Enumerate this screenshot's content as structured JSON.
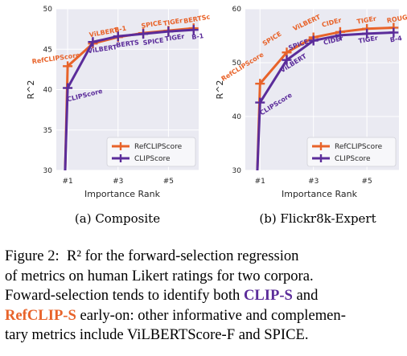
{
  "chart_data": [
    {
      "type": "line",
      "subtitle": "(a) Composite",
      "xlabel": "Importance Rank",
      "ylabel": "R^2",
      "ylim": [
        30,
        50
      ],
      "yticks": [
        30,
        35,
        40,
        45,
        50
      ],
      "xticks": [
        "#1",
        "#3",
        "#5"
      ],
      "x": [
        1,
        2,
        3,
        4,
        5,
        6
      ],
      "grid": true,
      "legend_position": "bottom-right",
      "series": [
        {
          "name": "RefCLIPScore",
          "color": "#e8632a",
          "values": [
            30.0,
            42.9,
            45.7,
            46.5,
            47.0,
            47.3,
            47.6
          ],
          "x": [
            0.9,
            1.0,
            2.0,
            3.0,
            4.0,
            5.0,
            6.0
          ],
          "labels": [
            "RefCLIPScore",
            "ViLBERT",
            "B-1",
            "SPICE",
            "TIGEr",
            "BERTSc"
          ]
        },
        {
          "name": "CLIPScore",
          "color": "#5b2c9a",
          "values": [
            30.0,
            40.2,
            45.9,
            46.6,
            46.9,
            47.2,
            47.4
          ],
          "x": [
            0.9,
            1.0,
            2.0,
            3.0,
            4.0,
            5.0,
            6.0
          ],
          "labels": [
            "CLIPScore",
            "ViLBERT",
            "BERTS",
            "SPICE",
            "TIGEr",
            "B-1"
          ]
        }
      ]
    },
    {
      "type": "line",
      "subtitle": "(b) Flickr8k-Expert",
      "xlabel": "Importance Rank",
      "ylabel": "R^2",
      "ylim": [
        30,
        60
      ],
      "yticks": [
        30,
        40,
        50,
        60
      ],
      "xticks": [
        "#1",
        "#3",
        "#5"
      ],
      "x": [
        1,
        2,
        3,
        4,
        5,
        6
      ],
      "grid": true,
      "legend_position": "bottom-right",
      "series": [
        {
          "name": "RefCLIPScore",
          "color": "#e8632a",
          "values": [
            30.0,
            46.1,
            51.9,
            54.7,
            55.7,
            56.3,
            56.5
          ],
          "x": [
            0.9,
            1.0,
            2.0,
            3.0,
            4.0,
            5.0,
            6.0
          ],
          "labels": [
            "RefCLIPScore",
            "SPICE",
            "ViLBERT",
            "CIDEr",
            "TIGEr",
            "ROUGE"
          ]
        },
        {
          "name": "CLIPScore",
          "color": "#5b2c9a",
          "values": [
            30.0,
            42.6,
            50.5,
            54.1,
            55.1,
            55.4,
            55.6
          ],
          "x": [
            0.9,
            1.0,
            2.0,
            3.0,
            4.0,
            5.0,
            6.0
          ],
          "labels": [
            "CLIPScore",
            "ViLBERT",
            "SPICE",
            "CIDEr",
            "TIGEr",
            "B-4"
          ]
        }
      ]
    }
  ],
  "caption": {
    "line1": "Figure 2:  R² for the forward-selection regression",
    "line2": "of metrics on human Likert ratings for two corpora.",
    "line3_a": "Foward-selection tends to identify both ",
    "line3_b": "CLIP-S",
    "line3_c": " and",
    "line4_a": "RefCLIP-S",
    "line4_b": " early-on: other informative and complemen-",
    "line5": "tary metrics include ViLBERTScore-F and SPICE."
  }
}
